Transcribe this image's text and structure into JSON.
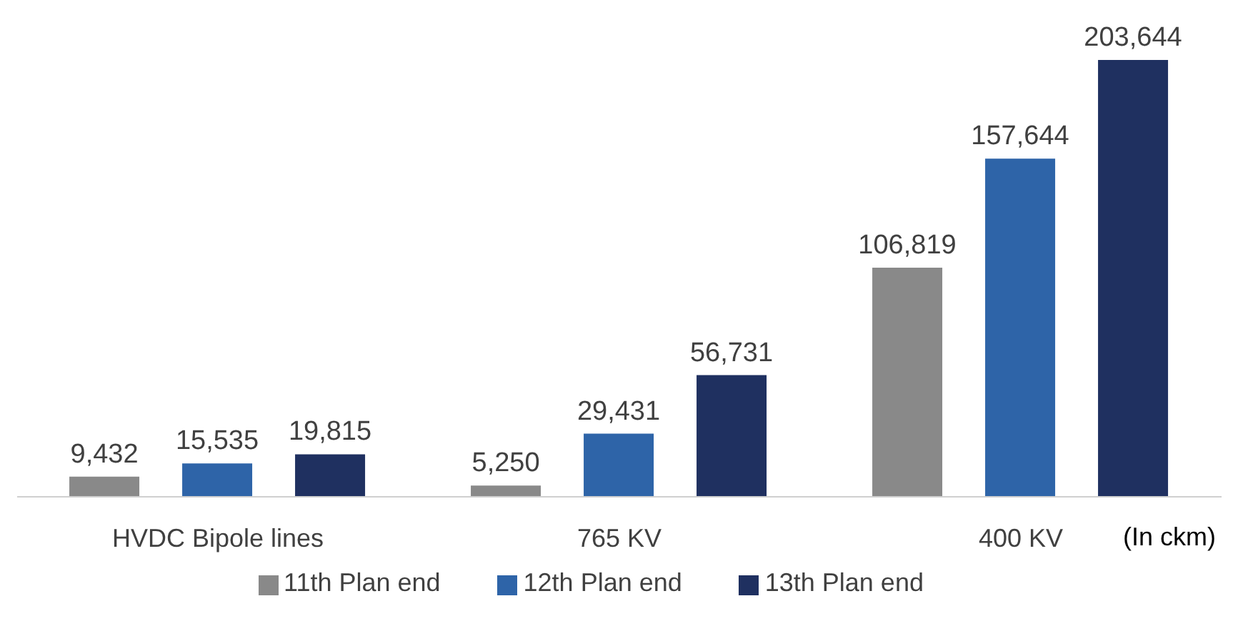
{
  "chart_data": {
    "type": "bar",
    "categories": [
      "HVDC Bipole lines",
      "765 KV",
      "400 KV"
    ],
    "series": [
      {
        "name": "11th Plan end",
        "color": "#898989",
        "values": [
          9432,
          5250,
          106819
        ],
        "value_labels": [
          "9,432",
          "5,250",
          "106,819"
        ]
      },
      {
        "name": "12th Plan end",
        "color": "#2e64a8",
        "values": [
          15535,
          29431,
          157644
        ],
        "value_labels": [
          "15,535",
          "29,431",
          "157,644"
        ]
      },
      {
        "name": "13th Plan end",
        "color": "#1f3060",
        "values": [
          19815,
          56731,
          203644
        ],
        "value_labels": [
          "19,815",
          "56,731",
          "203,644"
        ]
      }
    ],
    "legend": "bottom",
    "annotations": [
      "(In ckm)"
    ]
  }
}
